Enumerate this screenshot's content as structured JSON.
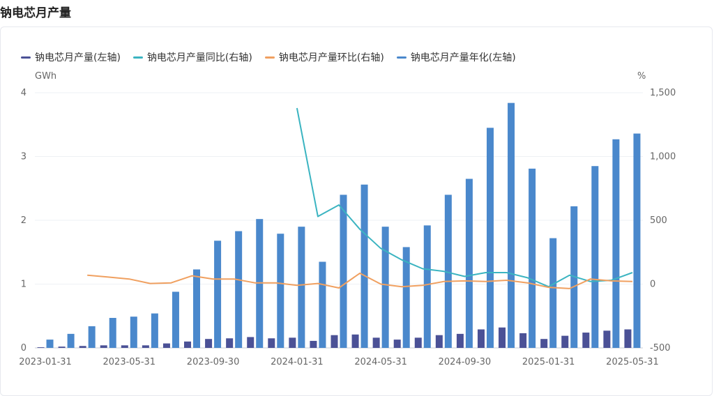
{
  "page": {
    "title": "钠电芯月产量"
  },
  "colors": {
    "monthly": "#4b5196",
    "yoy": "#3bb4c1",
    "mom": "#f0a060",
    "annualized": "#4a88cc",
    "grid": "#eef0f4"
  },
  "chart_data": {
    "type": "bar",
    "left_unit": "GWh",
    "right_unit": "%",
    "left_ticks": [
      "0",
      "1",
      "2",
      "3",
      "4"
    ],
    "right_ticks": [
      "-500",
      "0",
      "500",
      "1,000",
      "1,500"
    ],
    "ylim_left": [
      0,
      4
    ],
    "ylim_right": [
      -500,
      1500
    ],
    "x_tick_labels": [
      "2023-01-31",
      "2023-05-31",
      "2023-09-30",
      "2024-01-31",
      "2024-05-31",
      "2024-09-30",
      "2025-01-31",
      "2025-05-31"
    ],
    "categories": [
      "2023-01-31",
      "2023-02-28",
      "2023-03-31",
      "2023-04-30",
      "2023-05-31",
      "2023-06-30",
      "2023-07-31",
      "2023-08-31",
      "2023-09-30",
      "2023-10-31",
      "2023-11-30",
      "2023-12-31",
      "2024-01-31",
      "2024-02-29",
      "2024-03-31",
      "2024-04-30",
      "2024-05-31",
      "2024-06-30",
      "2024-07-31",
      "2024-08-31",
      "2024-09-30",
      "2024-10-31",
      "2024-11-30",
      "2024-12-31",
      "2025-01-31",
      "2025-02-28",
      "2025-03-31",
      "2025-04-30",
      "2025-05-31"
    ],
    "series": [
      {
        "name": "钠电芯月产量(左轴)",
        "axis": "left",
        "kind": "bar",
        "color": "#4b5196",
        "values": [
          0.01,
          0.02,
          0.03,
          0.04,
          0.04,
          0.04,
          0.07,
          0.1,
          0.14,
          0.15,
          0.17,
          0.15,
          0.16,
          0.11,
          0.2,
          0.21,
          0.16,
          0.13,
          0.16,
          0.2,
          0.22,
          0.29,
          0.32,
          0.23,
          0.14,
          0.19,
          0.24,
          0.27,
          0.29
        ]
      },
      {
        "name": "钠电芯月产量同比(右轴)",
        "axis": "right",
        "kind": "line",
        "color": "#3bb4c1",
        "values": [
          null,
          null,
          null,
          null,
          null,
          null,
          null,
          null,
          null,
          null,
          null,
          null,
          1380,
          530,
          620,
          430,
          280,
          190,
          120,
          100,
          60,
          90,
          90,
          50,
          -20,
          70,
          20,
          30,
          90
        ]
      },
      {
        "name": "钠电芯月产量环比(右轴)",
        "axis": "right",
        "kind": "line",
        "color": "#f0a060",
        "values": [
          null,
          null,
          70,
          55,
          40,
          5,
          10,
          65,
          40,
          40,
          10,
          10,
          -10,
          5,
          -30,
          85,
          0,
          -20,
          -10,
          20,
          25,
          20,
          30,
          10,
          -25,
          -35,
          40,
          25,
          20
        ]
      },
      {
        "name": "钠电芯月产量年化(左轴)",
        "axis": "left",
        "kind": "bar",
        "color": "#4a88cc",
        "values": [
          0.13,
          0.22,
          0.34,
          0.47,
          0.49,
          0.54,
          0.88,
          1.23,
          1.68,
          1.83,
          2.02,
          1.79,
          1.9,
          1.35,
          2.4,
          2.56,
          1.9,
          1.58,
          1.92,
          2.4,
          2.65,
          3.45,
          3.84,
          2.81,
          1.72,
          2.22,
          2.85,
          3.27,
          3.36
        ]
      }
    ]
  }
}
